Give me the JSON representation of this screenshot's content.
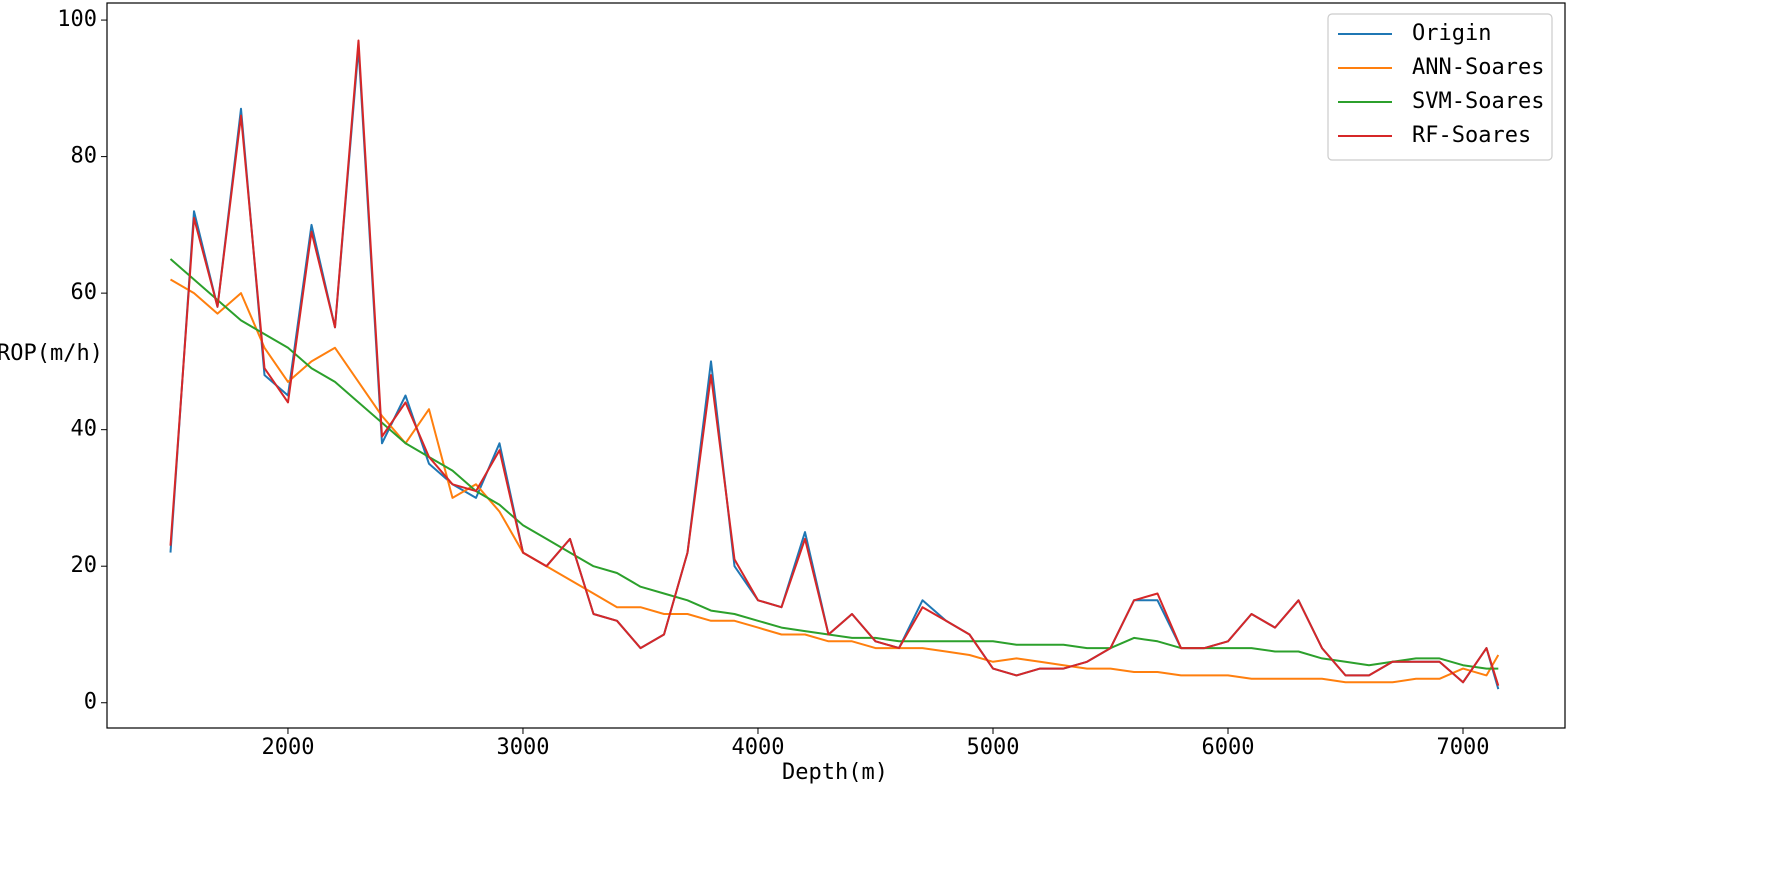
{
  "chart_data": {
    "type": "line",
    "x_label": "Depth(m)",
    "y_label": "ROP(m/h)",
    "x": [
      1500,
      1600,
      1700,
      1800,
      1900,
      2000,
      2100,
      2200,
      2300,
      2400,
      2500,
      2600,
      2700,
      2800,
      2900,
      3000,
      3100,
      3200,
      3300,
      3400,
      3500,
      3600,
      3700,
      3800,
      3900,
      4000,
      4100,
      4200,
      4300,
      4400,
      4500,
      4600,
      4700,
      4800,
      4900,
      5000,
      5100,
      5200,
      5300,
      5400,
      5500,
      5600,
      5700,
      5800,
      5900,
      6000,
      6100,
      6200,
      6300,
      6400,
      6500,
      6600,
      6700,
      6800,
      6900,
      7000,
      7100,
      7150
    ],
    "series": [
      {
        "name": "Origin",
        "color": "#1f77b4",
        "values": [
          22,
          72,
          58,
          87,
          48,
          45,
          70,
          55,
          96,
          38,
          45,
          35,
          32,
          30,
          38,
          22,
          20,
          24,
          13,
          12,
          8,
          10,
          22,
          50,
          20,
          15,
          14,
          25,
          10,
          13,
          9,
          8,
          15,
          12,
          10,
          5,
          4,
          5,
          5,
          6,
          8,
          15,
          15,
          8,
          8,
          9,
          13,
          11,
          15,
          8,
          4,
          4,
          6,
          6,
          6,
          3,
          8,
          2
        ]
      },
      {
        "name": "ANN-Soares",
        "color": "#ff7f0e",
        "values": [
          62,
          60,
          57,
          60,
          52,
          47,
          50,
          52,
          47,
          42,
          38,
          43,
          30,
          32,
          28,
          22,
          20,
          18,
          16,
          14,
          14,
          13,
          13,
          12,
          12,
          11,
          10,
          10,
          9,
          9,
          8,
          8,
          8,
          7.5,
          7,
          6,
          6.5,
          6,
          5.5,
          5,
          5,
          4.5,
          4.5,
          4,
          4,
          4,
          3.5,
          3.5,
          3.5,
          3.5,
          3,
          3,
          3,
          3.5,
          3.5,
          5,
          4,
          7
        ]
      },
      {
        "name": "SVM-Soares",
        "color": "#2ca02c",
        "values": [
          65,
          62,
          59,
          56,
          54,
          52,
          49,
          47,
          44,
          41,
          38,
          36,
          34,
          31,
          29,
          26,
          24,
          22,
          20,
          19,
          17,
          16,
          15,
          13.5,
          13,
          12,
          11,
          10.5,
          10,
          9.5,
          9.5,
          9,
          9,
          9,
          9,
          9,
          8.5,
          8.5,
          8.5,
          8,
          8,
          9.5,
          9,
          8,
          8,
          8,
          8,
          7.5,
          7.5,
          6.5,
          6,
          5.5,
          6,
          6.5,
          6.5,
          5.5,
          5,
          5
        ]
      },
      {
        "name": "RF-Soares",
        "color": "#d62728",
        "values": [
          23,
          71,
          58,
          86,
          49,
          44,
          69,
          55,
          97,
          39,
          44,
          36,
          32,
          31,
          37,
          22,
          20,
          24,
          13,
          12,
          8,
          10,
          22,
          48,
          21,
          15,
          14,
          24,
          10,
          13,
          9,
          8,
          14,
          12,
          10,
          5,
          4,
          5,
          5,
          6,
          8,
          15,
          16,
          8,
          8,
          9,
          13,
          11,
          15,
          8,
          4,
          4,
          6,
          6,
          6,
          3,
          8,
          2.5
        ]
      }
    ],
    "xlim": [
      1230,
      7434
    ],
    "ylim": [
      -3.7,
      102.5
    ],
    "xticks": [
      2000,
      3000,
      4000,
      5000,
      6000,
      7000
    ],
    "yticks": [
      0,
      20,
      40,
      60,
      80,
      100
    ],
    "legend": "upper right"
  }
}
